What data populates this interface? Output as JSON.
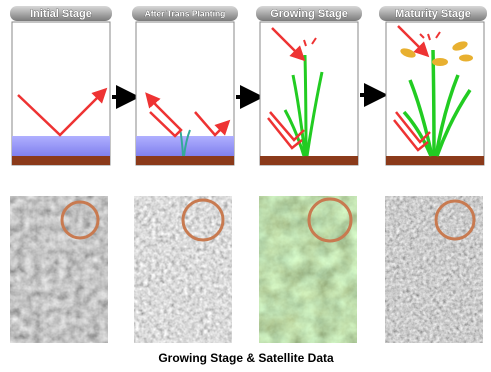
{
  "stages": [
    {
      "label": "Initial Stage"
    },
    {
      "label": "After Trans Planting"
    },
    {
      "label": "Growing Stage"
    },
    {
      "label": "Maturity Stage"
    }
  ],
  "caption": "Growing Stage & Satellite Data"
}
